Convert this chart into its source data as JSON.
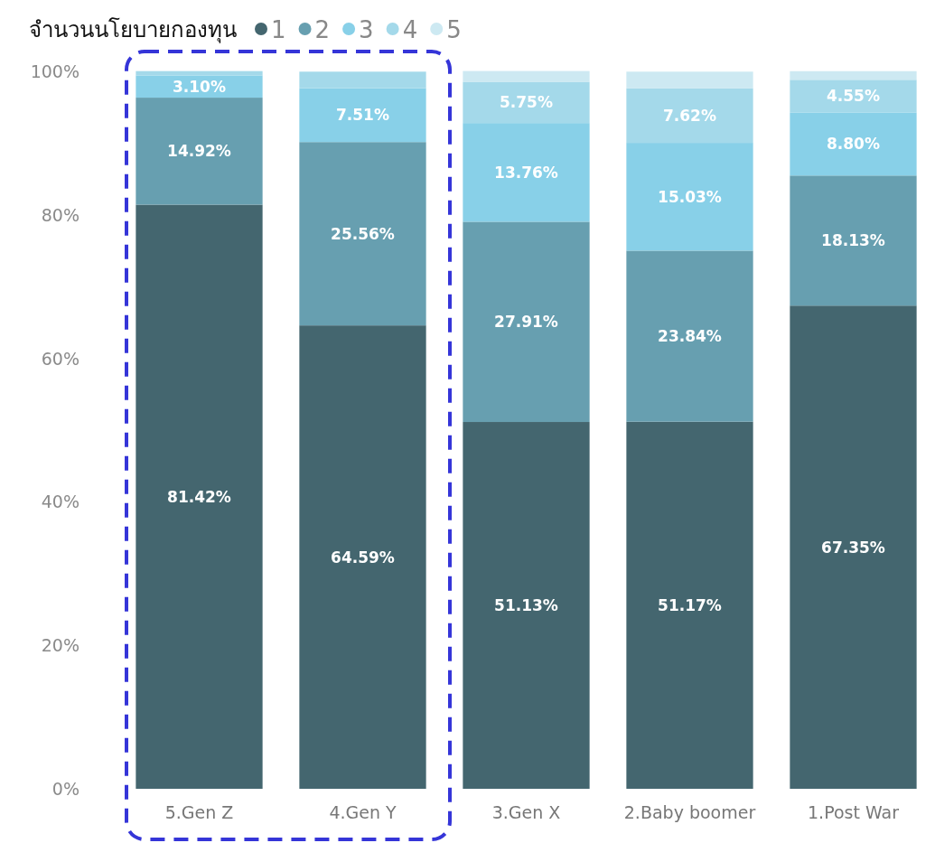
{
  "chart_data": {
    "type": "bar",
    "stacked": true,
    "legend_title": "จำนวนนโยบายกองทุน",
    "legend": "top left",
    "categories": [
      "5.Gen Z",
      "4.Gen Y",
      "3.Gen X",
      "2.Baby boomer",
      "1.Post War"
    ],
    "ylim": [
      0,
      100
    ],
    "yticks": [
      {
        "value": 0,
        "label": "0%"
      },
      {
        "value": 20,
        "label": "20%"
      },
      {
        "value": 40,
        "label": "40%"
      },
      {
        "value": 60,
        "label": "60%"
      },
      {
        "value": 80,
        "label": "80%"
      },
      {
        "value": 100,
        "label": "100%"
      }
    ],
    "series": [
      {
        "name": "1",
        "color": "#44666f",
        "values": [
          81.42,
          64.59,
          51.13,
          51.17,
          67.35
        ],
        "value_labels": [
          "81.42%",
          "64.59%",
          "51.13%",
          "51.17%",
          "67.35%"
        ]
      },
      {
        "name": "2",
        "color": "#679fb0",
        "values": [
          14.92,
          25.56,
          27.91,
          23.84,
          18.13
        ],
        "value_labels": [
          "14.92%",
          "25.56%",
          "27.91%",
          "23.84%",
          "18.13%"
        ]
      },
      {
        "name": "3",
        "color": "#88d0e8",
        "values": [
          3.1,
          7.51,
          13.76,
          15.03,
          8.8
        ],
        "value_labels": [
          "3.10%",
          "7.51%",
          "13.76%",
          "15.03%",
          "8.80%"
        ]
      },
      {
        "name": "4",
        "color": "#a4d9ea",
        "values": [
          0.6,
          2.3,
          5.75,
          7.62,
          4.55
        ],
        "value_labels": [
          null,
          null,
          "5.75%",
          "7.62%",
          "4.55%"
        ]
      },
      {
        "name": "5",
        "color": "#cde9f2",
        "values": [
          null,
          null,
          1.5,
          2.3,
          1.2
        ]
      }
    ]
  }
}
